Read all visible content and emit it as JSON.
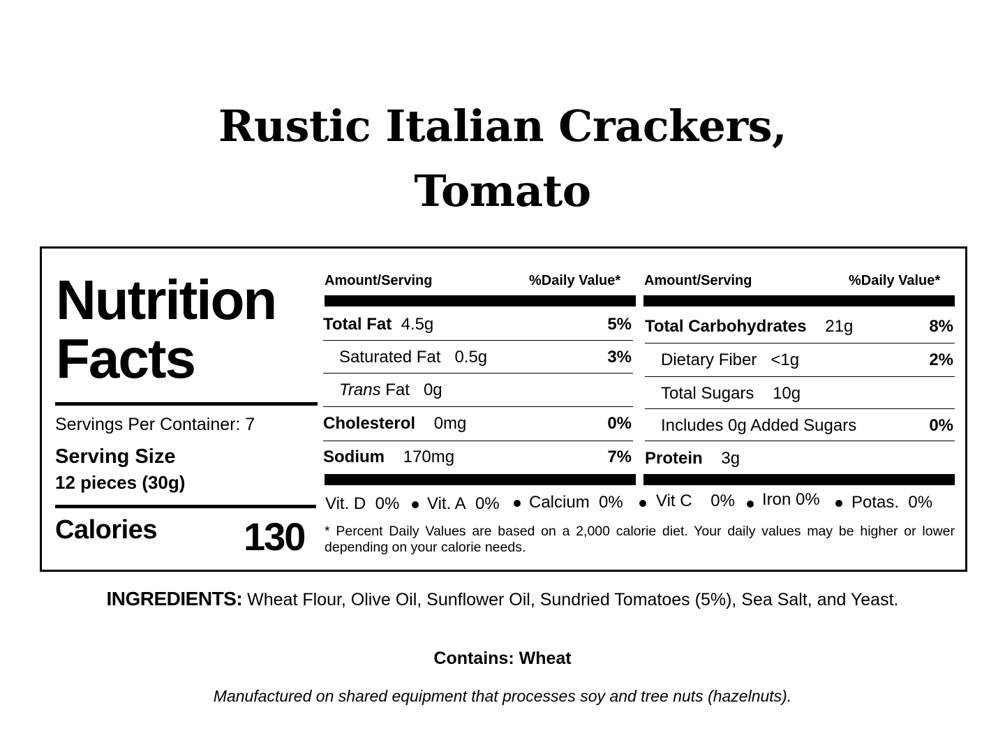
{
  "product": {
    "title_line1": "Rustic Italian Crackers,",
    "title_line2": "Tomato"
  },
  "label": {
    "heading_line1": "Nutrition",
    "heading_line2": "Facts",
    "servings_per_container": "Servings Per Container: 7",
    "serving_size_label": "Serving Size",
    "serving_size_value": "12 pieces (30g)",
    "calories_label": "Calories",
    "calories_value": "130",
    "col_header_amount": "Amount/Serving",
    "col_header_dv": "%Daily Value*",
    "left_rows": [
      {
        "name": "Total Fat",
        "amount": "4.5g",
        "dv": "5%"
      },
      {
        "name": "Saturated Fat",
        "amount": "0.5g",
        "dv": "3%"
      },
      {
        "name_italic": "Trans",
        "name": "Fat",
        "amount": "0g",
        "dv": ""
      },
      {
        "name": "Cholesterol",
        "amount": "0mg",
        "dv": "0%"
      },
      {
        "name": "Sodium",
        "amount": "170mg",
        "dv": "7%"
      }
    ],
    "right_rows": [
      {
        "name": "Total Carbohydrates",
        "amount": "21g",
        "dv": "8%"
      },
      {
        "name": "Dietary Fiber",
        "amount": "<1g",
        "dv": "2%"
      },
      {
        "name": "Total Sugars",
        "amount": "10g",
        "dv": ""
      },
      {
        "name": "Includes 0g Added Sugars",
        "amount": "",
        "dv": "0%"
      },
      {
        "name": "Protein",
        "amount": "3g",
        "dv": ""
      }
    ],
    "vitamins": [
      {
        "name": "Vit. D",
        "value": "0%"
      },
      {
        "name": "Vit. A",
        "value": "0%"
      },
      {
        "name": "Calcium",
        "value": "0%"
      },
      {
        "name": "Vit C",
        "value": "0%"
      },
      {
        "name": "Iron",
        "value": "0%"
      },
      {
        "name": "Potas.",
        "value": "0%"
      }
    ],
    "footnote": "* Percent Daily Values are based on a 2,000 calorie diet. Your daily values may be higher or lower depending on your calorie needs."
  },
  "ingredients": {
    "label": "INGREDIENTS:",
    "text": "Wheat Flour, Olive Oil, Sunflower Oil, Sundried Tomatoes (5%), Sea Salt, and Yeast."
  },
  "allergens": {
    "contains": "Contains: Wheat",
    "manufactured": "Manufactured on shared equipment that processes soy and tree nuts (hazelnuts)."
  }
}
